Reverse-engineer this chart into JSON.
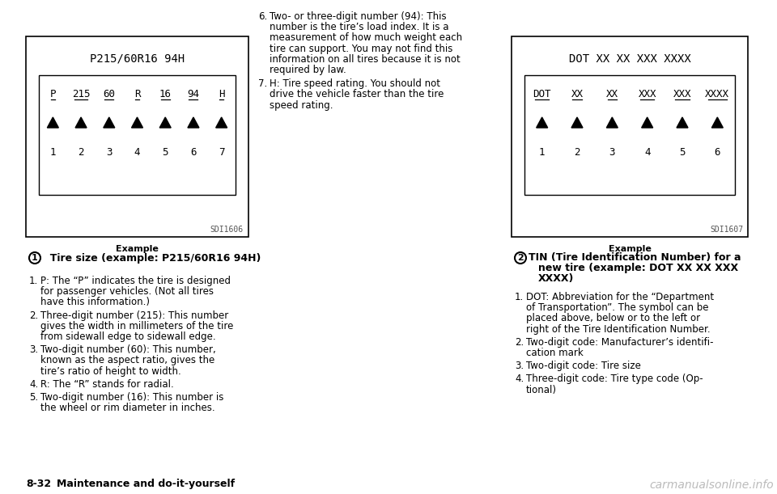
{
  "bg_color": "#ffffff",
  "box1": {
    "title": "P215/60R16 94H",
    "labels": [
      "P",
      "215",
      "60",
      "R",
      "16",
      "94",
      "H"
    ],
    "numbers": [
      "1",
      "2",
      "3",
      "4",
      "5",
      "6",
      "7"
    ],
    "sdi": "SDI1606",
    "caption": "Example",
    "circle_label": "1",
    "circle_text": "  Tire size (example: P215/60R16 94H)"
  },
  "box2": {
    "title": "DOT XX XX XXX XXXX",
    "labels": [
      "DOT",
      "XX",
      "XX",
      "XXX",
      "XXX",
      "XXXX"
    ],
    "numbers": [
      "1",
      "2",
      "3",
      "4",
      "5",
      "6"
    ],
    "sdi": "SDI1607",
    "caption": "Example",
    "circle_label": "2",
    "circle_text_lines": [
      "TIN (Tire Identification Number) for a",
      "new tire (example: DOT XX XX XXX",
      "XXXX)"
    ]
  },
  "left_text": [
    {
      "n": "1.",
      "lines": [
        "P: The “P” indicates the tire is designed",
        "for passenger vehicles. (Not all tires",
        "have this information.)"
      ]
    },
    {
      "n": "2.",
      "lines": [
        "Three-digit number (215): This number",
        "gives the width in millimeters of the tire",
        "from sidewall edge to sidewall edge."
      ]
    },
    {
      "n": "3.",
      "lines": [
        "Two-digit number (60): This number,",
        "known as the aspect ratio, gives the",
        "tire’s ratio of height to width."
      ]
    },
    {
      "n": "4.",
      "lines": [
        "R: The “R” stands for radial."
      ]
    },
    {
      "n": "5.",
      "lines": [
        "Two-digit number (16): This number is",
        "the wheel or rim diameter in inches."
      ]
    }
  ],
  "middle_text": [
    {
      "n": "6.",
      "lines": [
        "Two- or three-digit number (94): This",
        "number is the tire’s load index. It is a",
        "measurement of how much weight each",
        "tire can support. You may not find this",
        "information on all tires because it is not",
        "required by law."
      ]
    },
    {
      "n": "7.",
      "lines": [
        "H: Tire speed rating. You should not",
        "drive the vehicle faster than the tire",
        "speed rating."
      ]
    }
  ],
  "right_text": [
    {
      "n": "1.",
      "lines": [
        "DOT: Abbreviation for the “Department",
        "of Transportation”. The symbol can be",
        "placed above, below or to the left or",
        "right of the Tire Identification Number."
      ]
    },
    {
      "n": "2.",
      "lines": [
        "Two-digit code: Manufacturer’s identifi-",
        "cation mark"
      ]
    },
    {
      "n": "3.",
      "lines": [
        "Two-digit code: Tire size"
      ]
    },
    {
      "n": "4.",
      "lines": [
        "Three-digit code: Tire type code (Op-",
        "tional)"
      ]
    }
  ],
  "footer_left": "8-32",
  "footer_text": "Maintenance and do-it-yourself",
  "watermark": "carmanualsonline.info"
}
